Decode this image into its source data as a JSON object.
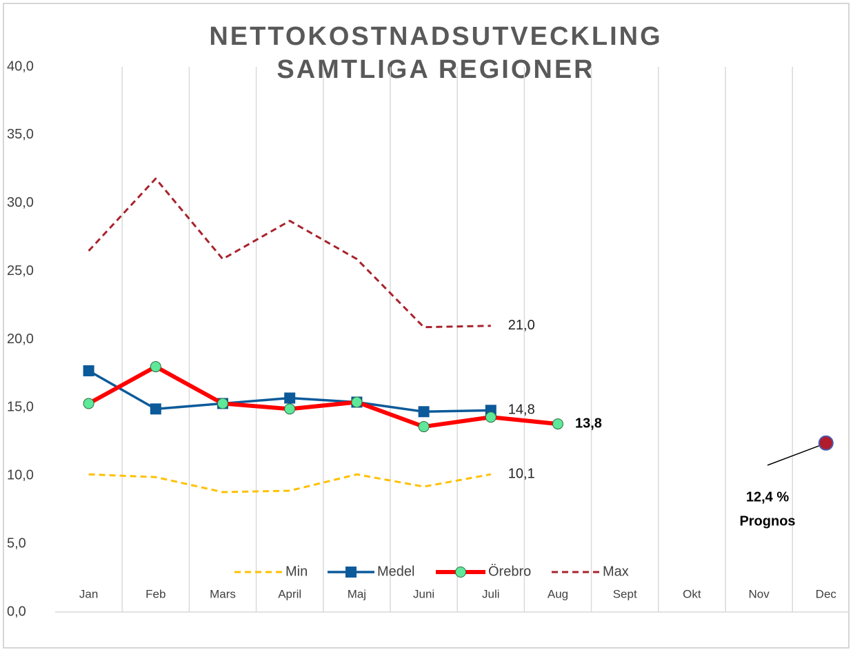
{
  "chart_data": {
    "type": "line",
    "title": [
      "NETTOKOSTNADSUTVECKLING",
      "SAMTLIGA REGIONER"
    ],
    "categories": [
      "Jan",
      "Feb",
      "Mars",
      "April",
      "Maj",
      "Juni",
      "Juli",
      "Aug",
      "Sept",
      "Okt",
      "Nov",
      "Dec"
    ],
    "series": [
      {
        "name": "Min",
        "color": "#ffc000",
        "dash": true,
        "width": 3,
        "marker": "none",
        "values": [
          10.1,
          9.9,
          8.8,
          8.9,
          10.1,
          9.2,
          10.1,
          null,
          null,
          null,
          null,
          null
        ],
        "value_labels": [
          null,
          null,
          null,
          null,
          null,
          null,
          "10,1",
          null,
          null,
          null,
          null,
          null
        ]
      },
      {
        "name": "Medel",
        "color": "#0b5a9a",
        "dash": false,
        "width": 3.5,
        "marker": "square",
        "values": [
          17.7,
          14.9,
          15.3,
          15.7,
          15.4,
          14.7,
          14.8,
          null,
          null,
          null,
          null,
          null
        ],
        "value_labels": [
          null,
          null,
          null,
          null,
          null,
          null,
          "14,8",
          null,
          null,
          null,
          null,
          null
        ]
      },
      {
        "name": "Örebro",
        "color": "#ff0000",
        "dash": false,
        "width": 6,
        "marker": "circle",
        "marker_color": "#5ee89a",
        "values": [
          15.3,
          18.0,
          15.3,
          14.9,
          15.4,
          13.6,
          14.3,
          13.8,
          null,
          null,
          null,
          null
        ],
        "value_labels": [
          null,
          null,
          null,
          null,
          null,
          null,
          null,
          "13,8",
          null,
          null,
          null,
          null
        ],
        "label_bold": true
      },
      {
        "name": "Max",
        "color": "#a8222c",
        "dash": true,
        "width": 3,
        "marker": "none",
        "values": [
          26.5,
          31.8,
          25.9,
          28.7,
          25.9,
          20.9,
          21.0,
          null,
          null,
          null,
          null,
          null
        ],
        "value_labels": [
          null,
          null,
          null,
          null,
          null,
          null,
          "21,0",
          null,
          null,
          null,
          null,
          null
        ]
      }
    ],
    "annotations": [
      {
        "x": "Dec",
        "value": 12.4,
        "label": "12,4 %",
        "text": "Prognos",
        "color": "#b01c2e"
      }
    ],
    "ylim": [
      0,
      40
    ],
    "yticks": [
      {
        "value": 0,
        "label": "0,0"
      },
      {
        "value": 5,
        "label": "5,0"
      },
      {
        "value": 10,
        "label": "10,0"
      },
      {
        "value": 15,
        "label": "15,0"
      },
      {
        "value": 20,
        "label": "20,0"
      },
      {
        "value": 25,
        "label": "25,0"
      },
      {
        "value": 30,
        "label": "30,0"
      },
      {
        "value": 35,
        "label": "35,0"
      },
      {
        "value": 40,
        "label": "40,0"
      }
    ],
    "grid": "x",
    "legend": "bottom"
  }
}
